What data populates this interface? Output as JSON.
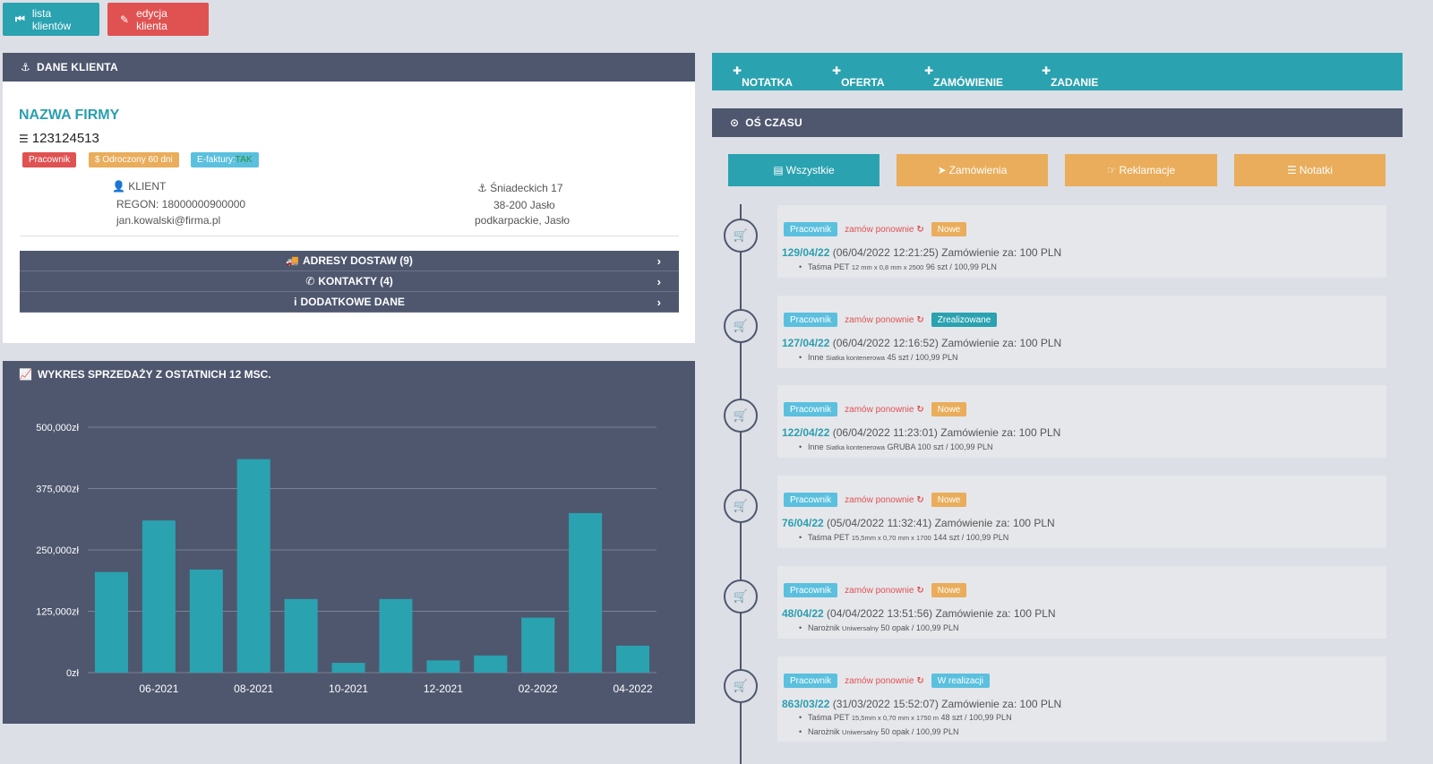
{
  "top_buttons": {
    "list": {
      "icon": "step-backward-icon",
      "label": "lista klientów"
    },
    "edit": {
      "icon": "pencil-icon",
      "label": "edycja klienta"
    }
  },
  "client_panel": {
    "header": "DANE KLIENTA",
    "company_name": "NAZWA FIRMY",
    "nip": "123124513",
    "badges": {
      "role": "Pracownik",
      "deferred": "$ Odroczony 60 dni",
      "einvoice_label": "E-faktury: ",
      "einvoice_value": "TAK"
    },
    "left_info": {
      "type_label": "KLIENT",
      "regon": "REGON: 18000000900000",
      "email": "jan.kowalski@firma.pl"
    },
    "right_info": {
      "street": "Śniadeckich 17",
      "city": "38-200 Jasło",
      "region": "podkarpackie, Jasło"
    },
    "accordions": [
      {
        "label": "ADRESY DOSTAW (9)"
      },
      {
        "label": "KONTAKTY (4)"
      },
      {
        "label": "DODATKOWE DANE"
      }
    ]
  },
  "chart_panel": {
    "header": "WYKRES SPRZEDAŻY Z OSTATNICH 12 MSC."
  },
  "chart_data": {
    "type": "bar",
    "title": "WYKRES SPRZEDAŻY Z OSTATNICH 12 MSC.",
    "categories": [
      "05-2021",
      "06-2021",
      "07-2021",
      "08-2021",
      "09-2021",
      "10-2021",
      "11-2021",
      "12-2021",
      "01-2022",
      "02-2022",
      "03-2022",
      "04-2022"
    ],
    "values": [
      205000,
      310000,
      210000,
      435000,
      150000,
      20000,
      150000,
      25000,
      35000,
      112000,
      325000,
      55000
    ],
    "x_tick_labels": [
      "06-2021",
      "08-2021",
      "10-2021",
      "12-2021",
      "02-2022",
      "04-2022"
    ],
    "y_ticks": [
      0,
      125000,
      250000,
      375000,
      500000
    ],
    "y_tick_labels": [
      "0zł",
      "125,000zł",
      "250,000zł",
      "375,000zł",
      "500,000zł"
    ],
    "ylim": [
      0,
      500000
    ],
    "bar_color": "#2aa2b0",
    "grid": true
  },
  "actions": [
    {
      "label": "NOTATKA"
    },
    {
      "label": "OFERTA"
    },
    {
      "label": "ZAMÓWIENIE"
    },
    {
      "label": "ZADANIE"
    }
  ],
  "timeline": {
    "header": "OŚ CZASU",
    "filters": [
      {
        "icon": "file-icon",
        "label": "Wszystkie",
        "color": "#2aa2b0"
      },
      {
        "icon": "send-icon",
        "label": "Zamówienia",
        "color": "#e9ad5b"
      },
      {
        "icon": "thumbs-down-icon",
        "label": "Reklamacje",
        "color": "#e9ad5b"
      },
      {
        "icon": "list-icon",
        "label": "Notatki",
        "color": "#e9ad5b"
      }
    ],
    "reorder_label": "zamów ponownie",
    "events": [
      {
        "role": "Pracownik",
        "status": "Nowe",
        "status_color": "#e9ad5b",
        "number": "129/04/22",
        "rest": " (06/04/2022 12:21:25) Zamówienie za: 100 PLN",
        "items": [
          {
            "name": "Taśma PET",
            "spec": "12 mm x 0,8 mm x 2500",
            "qty": "96 szt / 100,99 PLN"
          }
        ]
      },
      {
        "role": "Pracownik",
        "status": "Zrealizowane",
        "status_color": "#2aa2b0",
        "number": "127/04/22",
        "rest": " (06/04/2022 12:16:52) Zamówienie za: 100 PLN",
        "items": [
          {
            "name": "Inne",
            "spec": "Siatka kontenerowa",
            "qty": "45 szt / 100,99 PLN"
          }
        ]
      },
      {
        "role": "Pracownik",
        "status": "Nowe",
        "status_color": "#e9ad5b",
        "number": "122/04/22",
        "rest": " (06/04/2022 11:23:01) Zamówienie za: 100 PLN",
        "items": [
          {
            "name": "Inne",
            "spec": "Siatka kontenerowa",
            "qty": "GRUBA 100 szt / 100,99 PLN"
          }
        ]
      },
      {
        "role": "Pracownik",
        "status": "Nowe",
        "status_color": "#e9ad5b",
        "number": "76/04/22",
        "rest": " (05/04/2022 11:32:41) Zamówienie za: 100 PLN",
        "items": [
          {
            "name": "Taśma PET",
            "spec": "15,5mm x 0,70 mm x 1700",
            "qty": "144 szt / 100,99 PLN"
          }
        ]
      },
      {
        "role": "Pracownik",
        "status": "Nowe",
        "status_color": "#e9ad5b",
        "number": "48/04/22",
        "rest": " (04/04/2022 13:51:56) Zamówienie za: 100 PLN",
        "items": [
          {
            "name": "Narożnik",
            "spec": "Uniwersalny",
            "qty": "50 opak / 100,99 PLN"
          }
        ]
      },
      {
        "role": "Pracownik",
        "status": "W realizacji",
        "status_color": "#5bc0de",
        "number": "863/03/22",
        "rest": " (31/03/2022 15:52:07) Zamówienie za: 100 PLN",
        "items": [
          {
            "name": "Taśma PET",
            "spec": "15,5mm x 0,70 mm x 1750 m",
            "qty": "48 szt / 100,99 PLN"
          },
          {
            "name": "Narożnik",
            "spec": "Uniwersalny",
            "qty": "50 opak / 100,99 PLN"
          }
        ]
      }
    ]
  }
}
